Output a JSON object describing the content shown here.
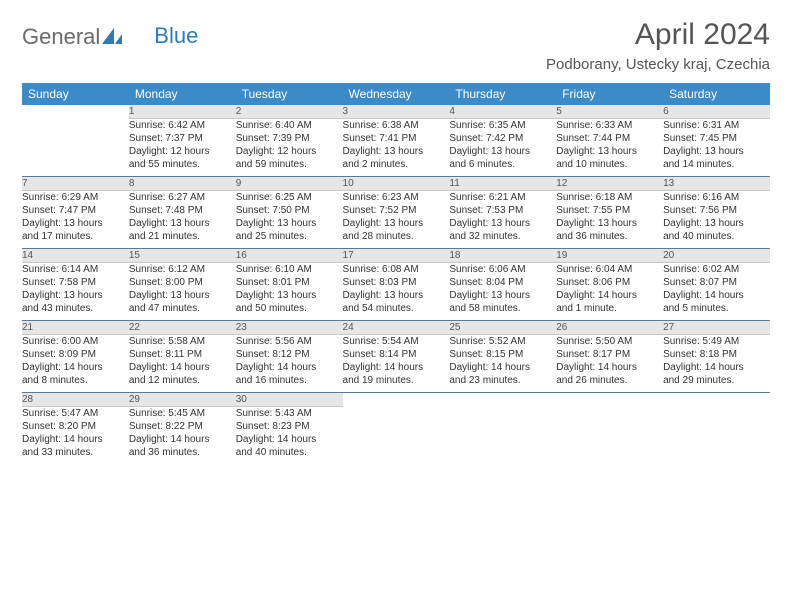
{
  "logo": {
    "text1": "General",
    "text2": "Blue"
  },
  "title": "April 2024",
  "location": "Podborany, Ustecky kraj, Czechia",
  "colors": {
    "header_bg": "#3b8bc8",
    "daynum_bg": "#e6e6e6",
    "rule": "#5a7a99"
  },
  "weekdays": [
    "Sunday",
    "Monday",
    "Tuesday",
    "Wednesday",
    "Thursday",
    "Friday",
    "Saturday"
  ],
  "weeks": [
    [
      null,
      {
        "n": "1",
        "sr": "Sunrise: 6:42 AM",
        "ss": "Sunset: 7:37 PM",
        "d1": "Daylight: 12 hours",
        "d2": "and 55 minutes."
      },
      {
        "n": "2",
        "sr": "Sunrise: 6:40 AM",
        "ss": "Sunset: 7:39 PM",
        "d1": "Daylight: 12 hours",
        "d2": "and 59 minutes."
      },
      {
        "n": "3",
        "sr": "Sunrise: 6:38 AM",
        "ss": "Sunset: 7:41 PM",
        "d1": "Daylight: 13 hours",
        "d2": "and 2 minutes."
      },
      {
        "n": "4",
        "sr": "Sunrise: 6:35 AM",
        "ss": "Sunset: 7:42 PM",
        "d1": "Daylight: 13 hours",
        "d2": "and 6 minutes."
      },
      {
        "n": "5",
        "sr": "Sunrise: 6:33 AM",
        "ss": "Sunset: 7:44 PM",
        "d1": "Daylight: 13 hours",
        "d2": "and 10 minutes."
      },
      {
        "n": "6",
        "sr": "Sunrise: 6:31 AM",
        "ss": "Sunset: 7:45 PM",
        "d1": "Daylight: 13 hours",
        "d2": "and 14 minutes."
      }
    ],
    [
      {
        "n": "7",
        "sr": "Sunrise: 6:29 AM",
        "ss": "Sunset: 7:47 PM",
        "d1": "Daylight: 13 hours",
        "d2": "and 17 minutes."
      },
      {
        "n": "8",
        "sr": "Sunrise: 6:27 AM",
        "ss": "Sunset: 7:48 PM",
        "d1": "Daylight: 13 hours",
        "d2": "and 21 minutes."
      },
      {
        "n": "9",
        "sr": "Sunrise: 6:25 AM",
        "ss": "Sunset: 7:50 PM",
        "d1": "Daylight: 13 hours",
        "d2": "and 25 minutes."
      },
      {
        "n": "10",
        "sr": "Sunrise: 6:23 AM",
        "ss": "Sunset: 7:52 PM",
        "d1": "Daylight: 13 hours",
        "d2": "and 28 minutes."
      },
      {
        "n": "11",
        "sr": "Sunrise: 6:21 AM",
        "ss": "Sunset: 7:53 PM",
        "d1": "Daylight: 13 hours",
        "d2": "and 32 minutes."
      },
      {
        "n": "12",
        "sr": "Sunrise: 6:18 AM",
        "ss": "Sunset: 7:55 PM",
        "d1": "Daylight: 13 hours",
        "d2": "and 36 minutes."
      },
      {
        "n": "13",
        "sr": "Sunrise: 6:16 AM",
        "ss": "Sunset: 7:56 PM",
        "d1": "Daylight: 13 hours",
        "d2": "and 40 minutes."
      }
    ],
    [
      {
        "n": "14",
        "sr": "Sunrise: 6:14 AM",
        "ss": "Sunset: 7:58 PM",
        "d1": "Daylight: 13 hours",
        "d2": "and 43 minutes."
      },
      {
        "n": "15",
        "sr": "Sunrise: 6:12 AM",
        "ss": "Sunset: 8:00 PM",
        "d1": "Daylight: 13 hours",
        "d2": "and 47 minutes."
      },
      {
        "n": "16",
        "sr": "Sunrise: 6:10 AM",
        "ss": "Sunset: 8:01 PM",
        "d1": "Daylight: 13 hours",
        "d2": "and 50 minutes."
      },
      {
        "n": "17",
        "sr": "Sunrise: 6:08 AM",
        "ss": "Sunset: 8:03 PM",
        "d1": "Daylight: 13 hours",
        "d2": "and 54 minutes."
      },
      {
        "n": "18",
        "sr": "Sunrise: 6:06 AM",
        "ss": "Sunset: 8:04 PM",
        "d1": "Daylight: 13 hours",
        "d2": "and 58 minutes."
      },
      {
        "n": "19",
        "sr": "Sunrise: 6:04 AM",
        "ss": "Sunset: 8:06 PM",
        "d1": "Daylight: 14 hours",
        "d2": "and 1 minute."
      },
      {
        "n": "20",
        "sr": "Sunrise: 6:02 AM",
        "ss": "Sunset: 8:07 PM",
        "d1": "Daylight: 14 hours",
        "d2": "and 5 minutes."
      }
    ],
    [
      {
        "n": "21",
        "sr": "Sunrise: 6:00 AM",
        "ss": "Sunset: 8:09 PM",
        "d1": "Daylight: 14 hours",
        "d2": "and 8 minutes."
      },
      {
        "n": "22",
        "sr": "Sunrise: 5:58 AM",
        "ss": "Sunset: 8:11 PM",
        "d1": "Daylight: 14 hours",
        "d2": "and 12 minutes."
      },
      {
        "n": "23",
        "sr": "Sunrise: 5:56 AM",
        "ss": "Sunset: 8:12 PM",
        "d1": "Daylight: 14 hours",
        "d2": "and 16 minutes."
      },
      {
        "n": "24",
        "sr": "Sunrise: 5:54 AM",
        "ss": "Sunset: 8:14 PM",
        "d1": "Daylight: 14 hours",
        "d2": "and 19 minutes."
      },
      {
        "n": "25",
        "sr": "Sunrise: 5:52 AM",
        "ss": "Sunset: 8:15 PM",
        "d1": "Daylight: 14 hours",
        "d2": "and 23 minutes."
      },
      {
        "n": "26",
        "sr": "Sunrise: 5:50 AM",
        "ss": "Sunset: 8:17 PM",
        "d1": "Daylight: 14 hours",
        "d2": "and 26 minutes."
      },
      {
        "n": "27",
        "sr": "Sunrise: 5:49 AM",
        "ss": "Sunset: 8:18 PM",
        "d1": "Daylight: 14 hours",
        "d2": "and 29 minutes."
      }
    ],
    [
      {
        "n": "28",
        "sr": "Sunrise: 5:47 AM",
        "ss": "Sunset: 8:20 PM",
        "d1": "Daylight: 14 hours",
        "d2": "and 33 minutes."
      },
      {
        "n": "29",
        "sr": "Sunrise: 5:45 AM",
        "ss": "Sunset: 8:22 PM",
        "d1": "Daylight: 14 hours",
        "d2": "and 36 minutes."
      },
      {
        "n": "30",
        "sr": "Sunrise: 5:43 AM",
        "ss": "Sunset: 8:23 PM",
        "d1": "Daylight: 14 hours",
        "d2": "and 40 minutes."
      },
      null,
      null,
      null,
      null
    ]
  ]
}
